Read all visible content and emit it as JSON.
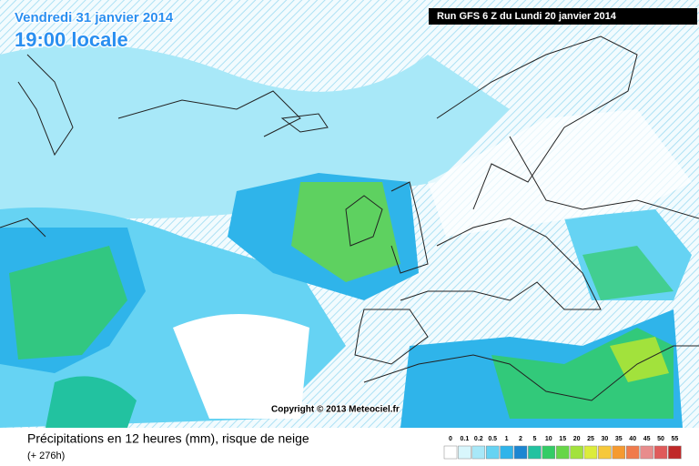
{
  "header": {
    "date": "Vendredi 31 janvier 2014",
    "time": "19:00 locale",
    "run": "Run GFS 6 Z du Lundi 20 janvier 2014"
  },
  "copyright": "Copyright © 2013 Meteociel.fr",
  "footer": {
    "title": "Précipitations en 12 heures (mm), risque de neige",
    "lead": "(+ 276h)"
  },
  "legend": {
    "ticks": [
      0,
      0.1,
      0.2,
      0.5,
      1,
      2,
      5,
      10,
      15,
      20,
      25,
      30,
      35,
      40,
      45,
      50,
      55
    ],
    "colors": [
      "#ffffff",
      "#d8f6fc",
      "#a8e8f8",
      "#66d3f3",
      "#2fb4ea",
      "#1c86d2",
      "#22c2a0",
      "#33cc66",
      "#66d648",
      "#a2e23c",
      "#dcec3a",
      "#f6c83a",
      "#f59a30",
      "#f07b4c",
      "#e88c8c",
      "#e05a5a",
      "#c02828"
    ]
  }
}
